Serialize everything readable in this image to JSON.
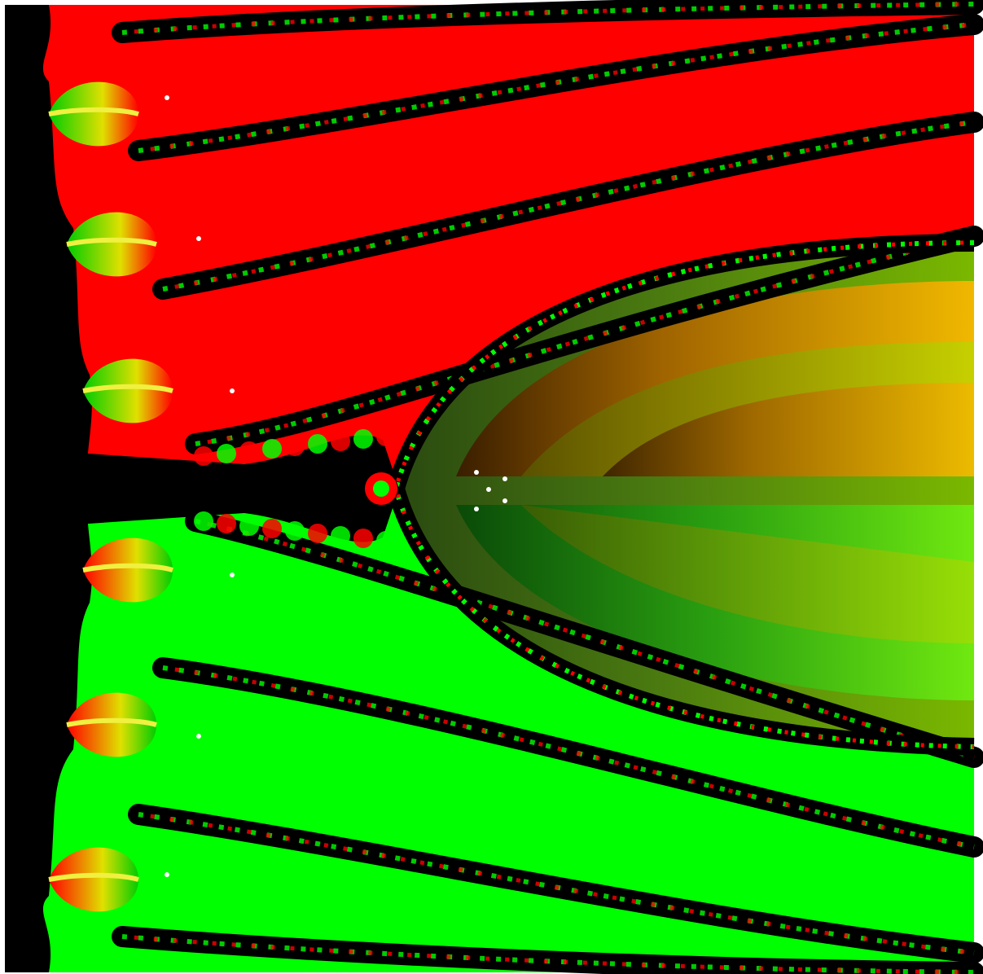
{
  "image": {
    "kind": "newton-fractal-render",
    "background": "#ffffff",
    "basin_colors": {
      "upper": "#ff0000",
      "lower": "#00ff00",
      "boundary": "#000000",
      "inner_dark_green": "#1f6a10",
      "inner_orange": "#e8a000",
      "inner_yellow_green": "#8ad000",
      "inner_bright_green": "#7ef000"
    },
    "marker_color": "#ffffff",
    "marker_count": 12
  }
}
